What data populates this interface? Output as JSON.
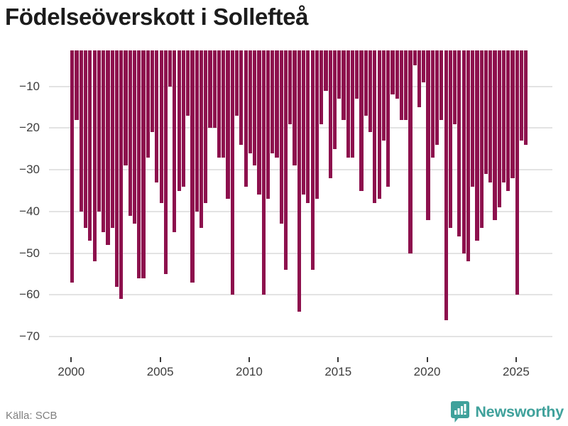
{
  "title": "Födelseöverskott i Sollefteå",
  "source_label": "Källa: SCB",
  "brand": {
    "name": "Newsworthy",
    "icon": "newsworthy-speech-bubble-chart-icon",
    "color": "#3fa19b"
  },
  "colors": {
    "bar": "#8d104d",
    "gridline": "#e3e3e3",
    "tick": "#3a3a3a",
    "axis_text": "#3d3d3d",
    "title_text": "#1c1c1c",
    "source_text": "#7f7f7f",
    "background": "#ffffff"
  },
  "chart_data": {
    "type": "bar",
    "title": "Födelseöverskott i Sollefteå",
    "xlabel": "",
    "ylabel": "",
    "frequency": "quarterly",
    "start_period": "2000-Q1",
    "end_period": "2025-Q3",
    "grid": "horizontal",
    "legend": "none",
    "ylim": [
      -74,
      -1.2
    ],
    "x_ticks": [
      2000,
      2005,
      2010,
      2015,
      2020,
      2025
    ],
    "x_tick_labels": [
      "2000",
      "2005",
      "2010",
      "2015",
      "2020",
      "2025"
    ],
    "y_ticks": [
      -10,
      -20,
      -30,
      -40,
      -50,
      -60,
      -70
    ],
    "y_tick_labels": [
      "−10",
      "−20",
      "−30",
      "−40",
      "−50",
      "−60",
      "−70"
    ],
    "categories": [
      "2000-Q1",
      "2000-Q2",
      "2000-Q3",
      "2000-Q4",
      "2001-Q1",
      "2001-Q2",
      "2001-Q3",
      "2001-Q4",
      "2002-Q1",
      "2002-Q2",
      "2002-Q3",
      "2002-Q4",
      "2003-Q1",
      "2003-Q2",
      "2003-Q3",
      "2003-Q4",
      "2004-Q1",
      "2004-Q2",
      "2004-Q3",
      "2004-Q4",
      "2005-Q1",
      "2005-Q2",
      "2005-Q3",
      "2005-Q4",
      "2006-Q1",
      "2006-Q2",
      "2006-Q3",
      "2006-Q4",
      "2007-Q1",
      "2007-Q2",
      "2007-Q3",
      "2007-Q4",
      "2008-Q1",
      "2008-Q2",
      "2008-Q3",
      "2008-Q4",
      "2009-Q1",
      "2009-Q2",
      "2009-Q3",
      "2009-Q4",
      "2010-Q1",
      "2010-Q2",
      "2010-Q3",
      "2010-Q4",
      "2011-Q1",
      "2011-Q2",
      "2011-Q3",
      "2011-Q4",
      "2012-Q1",
      "2012-Q2",
      "2012-Q3",
      "2012-Q4",
      "2013-Q1",
      "2013-Q2",
      "2013-Q3",
      "2013-Q4",
      "2014-Q1",
      "2014-Q2",
      "2014-Q3",
      "2014-Q4",
      "2015-Q1",
      "2015-Q2",
      "2015-Q3",
      "2015-Q4",
      "2016-Q1",
      "2016-Q2",
      "2016-Q3",
      "2016-Q4",
      "2017-Q1",
      "2017-Q2",
      "2017-Q3",
      "2017-Q4",
      "2018-Q1",
      "2018-Q2",
      "2018-Q3",
      "2018-Q4",
      "2019-Q1",
      "2019-Q2",
      "2019-Q3",
      "2019-Q4",
      "2020-Q1",
      "2020-Q2",
      "2020-Q3",
      "2020-Q4",
      "2021-Q1",
      "2021-Q2",
      "2021-Q3",
      "2021-Q4",
      "2022-Q1",
      "2022-Q2",
      "2022-Q3",
      "2022-Q4",
      "2023-Q1",
      "2023-Q2",
      "2023-Q3",
      "2023-Q4",
      "2024-Q1",
      "2024-Q2",
      "2024-Q3",
      "2024-Q4",
      "2025-Q1",
      "2025-Q2",
      "2025-Q3"
    ],
    "values": [
      -57,
      -18,
      -40,
      -44,
      -47,
      -52,
      -40,
      -45,
      -48,
      -44,
      -58,
      -61,
      -29,
      -41,
      -43,
      -56,
      -56,
      -27,
      -21,
      -33,
      -38,
      -55,
      -10,
      -45,
      -35,
      -34,
      -17,
      -57,
      -40,
      -44,
      -38,
      -20,
      -20,
      -27,
      -27,
      -37,
      -60,
      -17,
      -24,
      -34,
      -26,
      -29,
      -36,
      -60,
      -37,
      -26,
      -27,
      -43,
      -54,
      -19,
      -29,
      -64,
      -36,
      -38,
      -54,
      -37,
      -19,
      -11,
      -32,
      -25,
      -13,
      -18,
      -27,
      -27,
      -13,
      -35,
      -17,
      -21,
      -38,
      -37,
      -23,
      -34,
      -12,
      -13,
      -18,
      -18,
      -50,
      -5,
      -15,
      -9,
      -42,
      -27,
      -24,
      -18,
      -66,
      -44,
      -19,
      -46,
      -50,
      -52,
      -34,
      -47,
      -44,
      -31,
      -33,
      -42,
      -39,
      -33,
      -35,
      -32,
      -60,
      -23,
      -24
    ]
  }
}
